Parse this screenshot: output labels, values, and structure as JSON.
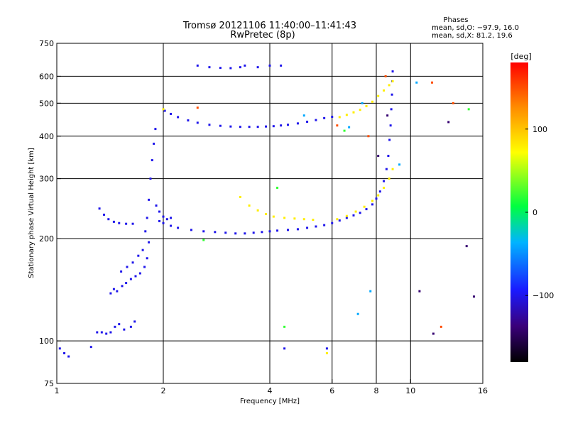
{
  "header": {
    "title": "Tromsø 20121106 11:40:00–11:41:43",
    "subtitle": "RwPretec (8p)"
  },
  "stats": {
    "heading": "Phases",
    "line_o": "mean, sd,O: −97.9, 16.0",
    "line_x": "mean, sd,X: 81.2, 19.6"
  },
  "colorbar": {
    "unit": "[deg]",
    "min": -180,
    "max": 180,
    "ticks": [
      {
        "label": "100",
        "value": 100
      },
      {
        "label": "0",
        "value": 0
      },
      {
        "label": "−100",
        "value": -100
      }
    ]
  },
  "chart_data": {
    "type": "scatter",
    "title": "",
    "xlabel": "Frequency [MHz]",
    "ylabel": "Stationary phase Virtual Height [km]",
    "xscale": "log",
    "yscale": "log",
    "xlim": [
      1,
      16
    ],
    "ylim": [
      75,
      750
    ],
    "grid": true,
    "xticks": [
      {
        "label": "1",
        "value": 1
      },
      {
        "label": "2",
        "value": 2
      },
      {
        "label": "4",
        "value": 4
      },
      {
        "label": "6",
        "value": 6
      },
      {
        "label": "8",
        "value": 8
      },
      {
        "label": "10",
        "value": 10
      },
      {
        "label": "16",
        "value": 16
      }
    ],
    "yticks": [
      {
        "label": "75",
        "value": 75
      },
      {
        "label": "100",
        "value": 100
      },
      {
        "label": "200",
        "value": 200
      },
      {
        "label": "300",
        "value": 300
      },
      {
        "label": "400",
        "value": 400
      },
      {
        "label": "500",
        "value": 500
      },
      {
        "label": "600",
        "value": 600
      },
      {
        "label": "750",
        "value": 750
      }
    ],
    "xgrid": [
      2,
      4,
      6,
      8,
      10
    ],
    "ygrid": [
      100,
      200,
      300,
      400,
      500,
      600
    ],
    "series": [
      {
        "phase": -100,
        "points": [
          [
            1.02,
            95
          ],
          [
            1.05,
            92
          ],
          [
            1.08,
            90
          ],
          [
            1.25,
            96
          ],
          [
            1.3,
            106
          ],
          [
            1.34,
            106
          ],
          [
            1.38,
            105
          ],
          [
            1.42,
            106
          ],
          [
            1.46,
            110
          ],
          [
            1.5,
            112
          ],
          [
            1.55,
            108
          ],
          [
            1.62,
            110
          ],
          [
            1.66,
            114
          ],
          [
            1.42,
            138
          ],
          [
            1.45,
            142
          ],
          [
            1.48,
            140
          ],
          [
            1.53,
            145
          ],
          [
            1.57,
            148
          ],
          [
            1.62,
            152
          ],
          [
            1.67,
            155
          ],
          [
            1.72,
            158
          ],
          [
            1.77,
            165
          ],
          [
            1.8,
            175
          ],
          [
            1.82,
            195
          ],
          [
            1.52,
            160
          ],
          [
            1.58,
            165
          ],
          [
            1.64,
            170
          ],
          [
            1.7,
            178
          ],
          [
            1.75,
            185
          ],
          [
            1.32,
            245
          ],
          [
            1.36,
            235
          ],
          [
            1.4,
            228
          ],
          [
            1.45,
            224
          ],
          [
            1.5,
            222
          ],
          [
            1.57,
            221
          ],
          [
            1.64,
            221
          ],
          [
            1.78,
            210
          ],
          [
            1.8,
            230
          ],
          [
            1.82,
            260
          ],
          [
            1.84,
            300
          ],
          [
            1.86,
            340
          ],
          [
            1.88,
            380
          ],
          [
            1.9,
            420
          ],
          [
            1.91,
            250
          ],
          [
            1.95,
            240
          ],
          [
            2.0,
            232
          ],
          [
            2.05,
            228
          ],
          [
            2.1,
            230
          ],
          [
            1.95,
            225
          ],
          [
            2.0,
            222
          ],
          [
            2.1,
            218
          ],
          [
            2.2,
            215
          ],
          [
            2.4,
            212
          ],
          [
            2.6,
            210
          ],
          [
            2.8,
            209
          ],
          [
            3.0,
            208
          ],
          [
            3.2,
            207
          ],
          [
            3.4,
            207
          ],
          [
            3.6,
            208
          ],
          [
            3.8,
            209
          ],
          [
            4.0,
            210
          ],
          [
            4.2,
            211
          ],
          [
            4.5,
            212
          ],
          [
            4.8,
            213
          ],
          [
            5.1,
            215
          ],
          [
            5.4,
            217
          ],
          [
            5.7,
            219
          ],
          [
            6.0,
            222
          ],
          [
            6.3,
            226
          ],
          [
            6.6,
            230
          ],
          [
            6.9,
            234
          ],
          [
            7.2,
            238
          ],
          [
            7.5,
            244
          ],
          [
            7.8,
            252
          ],
          [
            8.0,
            262
          ],
          [
            8.2,
            275
          ],
          [
            8.4,
            295
          ],
          [
            8.55,
            320
          ],
          [
            8.65,
            350
          ],
          [
            8.72,
            390
          ],
          [
            8.78,
            430
          ],
          [
            8.82,
            480
          ],
          [
            8.86,
            530
          ],
          [
            8.88,
            580
          ],
          [
            8.9,
            620
          ],
          [
            2.02,
            475
          ],
          [
            2.1,
            465
          ],
          [
            2.2,
            455
          ],
          [
            2.35,
            445
          ],
          [
            2.5,
            438
          ],
          [
            2.7,
            432
          ],
          [
            2.9,
            429
          ],
          [
            3.1,
            427
          ],
          [
            3.3,
            426
          ],
          [
            3.5,
            426
          ],
          [
            3.7,
            426
          ],
          [
            3.9,
            427
          ],
          [
            4.1,
            428
          ],
          [
            4.3,
            430
          ],
          [
            4.5,
            432
          ],
          [
            4.8,
            436
          ],
          [
            5.1,
            441
          ],
          [
            5.4,
            446
          ],
          [
            5.7,
            452
          ],
          [
            6.0,
            456
          ],
          [
            2.5,
            645
          ],
          [
            2.7,
            638
          ],
          [
            2.9,
            635
          ],
          [
            3.1,
            634
          ],
          [
            3.3,
            638
          ],
          [
            3.4,
            645
          ],
          [
            3.7,
            638
          ],
          [
            4.0,
            645
          ],
          [
            4.3,
            645
          ],
          [
            4.4,
            95
          ],
          [
            5.8,
            95
          ]
        ]
      },
      {
        "phase": 80,
        "points": [
          [
            3.3,
            265
          ],
          [
            3.5,
            250
          ],
          [
            3.7,
            242
          ],
          [
            3.9,
            236
          ],
          [
            4.1,
            232
          ],
          [
            4.4,
            230
          ],
          [
            4.7,
            229
          ],
          [
            5.0,
            228
          ],
          [
            5.3,
            227
          ],
          [
            6.2,
            228
          ],
          [
            6.6,
            233
          ],
          [
            7.0,
            240
          ],
          [
            7.4,
            248
          ],
          [
            7.8,
            258
          ],
          [
            8.1,
            268
          ],
          [
            8.4,
            282
          ],
          [
            8.7,
            300
          ],
          [
            8.9,
            320
          ],
          [
            6.3,
            455
          ],
          [
            6.6,
            462
          ],
          [
            6.9,
            470
          ],
          [
            7.2,
            478
          ],
          [
            7.5,
            490
          ],
          [
            7.8,
            505
          ],
          [
            8.1,
            525
          ],
          [
            8.4,
            545
          ],
          [
            8.7,
            565
          ],
          [
            8.9,
            580
          ],
          [
            2.0,
            480
          ],
          [
            5.8,
            92
          ]
        ]
      },
      {
        "phase": 150,
        "points": [
          [
            2.5,
            485
          ],
          [
            6.2,
            430
          ],
          [
            7.6,
            400
          ],
          [
            8.5,
            600
          ],
          [
            11.5,
            575
          ],
          [
            13.2,
            500
          ],
          [
            12.2,
            110
          ]
        ]
      },
      {
        "phase": 20,
        "points": [
          [
            2.6,
            198
          ],
          [
            4.2,
            282
          ],
          [
            6.5,
            415
          ],
          [
            4.4,
            110
          ],
          [
            14.6,
            480
          ]
        ]
      },
      {
        "phase": -40,
        "points": [
          [
            5.0,
            460
          ],
          [
            7.3,
            500
          ],
          [
            10.4,
            575
          ],
          [
            7.7,
            140
          ],
          [
            7.1,
            120
          ],
          [
            9.3,
            330
          ],
          [
            6.7,
            425
          ]
        ]
      },
      {
        "phase": -140,
        "points": [
          [
            12.8,
            440
          ],
          [
            14.4,
            190
          ],
          [
            15.1,
            135
          ],
          [
            11.6,
            105
          ],
          [
            10.6,
            140
          ],
          [
            8.1,
            350
          ],
          [
            8.6,
            460
          ]
        ]
      }
    ]
  }
}
